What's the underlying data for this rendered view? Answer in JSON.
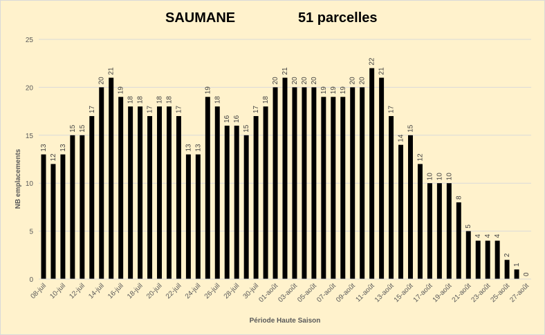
{
  "chart_data": {
    "type": "bar",
    "title": "SAUMANE",
    "subtitle": "51 parcelles",
    "xlabel": "Période Haute Saison",
    "ylabel": "NB emplacements",
    "ylim": [
      0,
      25
    ],
    "yticks": [
      0,
      5,
      10,
      15,
      20,
      25
    ],
    "grid": true,
    "bar_color": "#000000",
    "background_color": "#fff2cc",
    "categories": [
      "08-juil",
      "09-juil",
      "10-juil",
      "11-juil",
      "12-juil",
      "13-juil",
      "14-juil",
      "15-juil",
      "16-juil",
      "17-juil",
      "18-juil",
      "19-juil",
      "20-juil",
      "21-juil",
      "22-juil",
      "23-juil",
      "24-juil",
      "25-juil",
      "26-juil",
      "27-juil",
      "28-juil",
      "29-juil",
      "30-juil",
      "31-juil",
      "01-août",
      "02-août",
      "03-août",
      "04-août",
      "05-août",
      "06-août",
      "07-août",
      "08-août",
      "09-août",
      "10-août",
      "11-août",
      "12-août",
      "13-août",
      "14-août",
      "15-août",
      "16-août",
      "17-août",
      "18-août",
      "19-août",
      "20-août",
      "21-août",
      "22-août",
      "23-août",
      "24-août",
      "25-août",
      "26-août",
      "27-août"
    ],
    "values": [
      13,
      12,
      13,
      15,
      15,
      17,
      20,
      21,
      19,
      18,
      18,
      17,
      18,
      18,
      17,
      13,
      13,
      19,
      18,
      16,
      16,
      15,
      17,
      18,
      20,
      21,
      20,
      20,
      20,
      19,
      19,
      19,
      20,
      20,
      22,
      21,
      17,
      14,
      15,
      12,
      10,
      10,
      10,
      8,
      5,
      4,
      4,
      4,
      2,
      1,
      0
    ],
    "visible_tick_labels": [
      "08-juil",
      "10-juil",
      "12-juil",
      "14-juil",
      "16-juil",
      "18-juil",
      "20-juil",
      "22-juil",
      "24-juil",
      "26-juil",
      "28-juil",
      "30-juil",
      "01-août",
      "03-août",
      "05-août",
      "07-août",
      "09-août",
      "11-août",
      "13-août",
      "15-août",
      "17-août",
      "19-août",
      "21-août",
      "23-août",
      "25-août",
      "27-août"
    ]
  }
}
